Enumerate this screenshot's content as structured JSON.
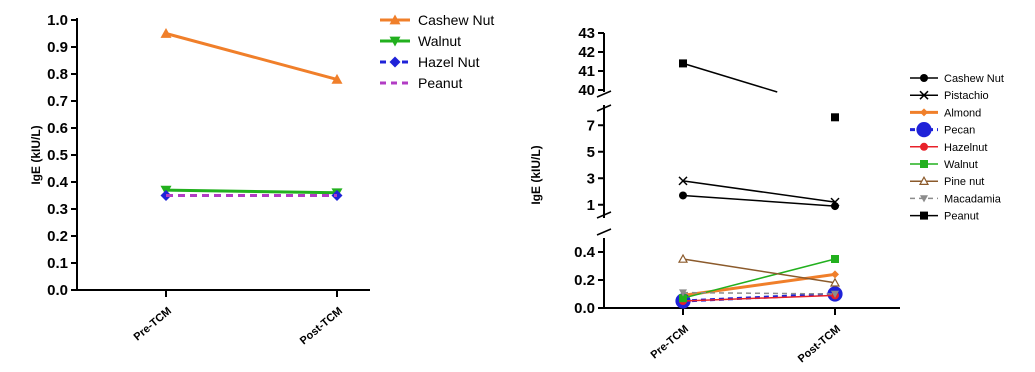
{
  "chart_data": [
    {
      "type": "line",
      "title": "",
      "xlabel": "",
      "ylabel": "IgE (kIU/L)",
      "categories": [
        "Pre-TCM",
        "Post-TCM"
      ],
      "ylim": [
        0,
        1.0
      ],
      "yticks": [
        "0.0",
        "0.1",
        "0.2",
        "0.3",
        "0.4",
        "0.5",
        "0.6",
        "0.7",
        "0.8",
        "0.9",
        "1.0"
      ],
      "legend_position": "top-right",
      "grid": false,
      "series": [
        {
          "name": "Cashew Nut",
          "values": [
            0.95,
            0.78
          ],
          "color": "#f07f2a",
          "marker": "triangle-up",
          "dash": "solid"
        },
        {
          "name": "Walnut",
          "values": [
            0.37,
            0.36
          ],
          "color": "#22b01e",
          "marker": "triangle-down",
          "dash": "solid"
        },
        {
          "name": "Hazel Nut",
          "values": [
            0.35,
            0.35
          ],
          "color": "#1f22d8",
          "marker": "diamond",
          "dash": "dashed"
        },
        {
          "name": "Peanut",
          "values": [
            0.35,
            0.35
          ],
          "color": "#b23cc4",
          "marker": "none",
          "dash": "dashed"
        }
      ]
    },
    {
      "type": "line",
      "title": "",
      "xlabel": "",
      "ylabel": "IgE (kIU/L)",
      "categories": [
        "Pre-TCM",
        "Post-TCM"
      ],
      "axis_breaks": true,
      "ylim_segments": [
        [
          0,
          0.5
        ],
        [
          0,
          8
        ],
        [
          40,
          43
        ]
      ],
      "yticks": {
        "bottom": [
          "0.0",
          "0.2",
          "0.4"
        ],
        "middle": [
          "1",
          "3",
          "5",
          "7"
        ],
        "top": [
          "40",
          "41",
          "42",
          "43"
        ]
      },
      "legend_position": "right",
      "grid": false,
      "series": [
        {
          "name": "Cashew Nut",
          "values": [
            1.7,
            0.9
          ],
          "color": "#000000",
          "marker": "circle",
          "dash": "solid"
        },
        {
          "name": "Pistachio",
          "values": [
            2.8,
            1.2
          ],
          "color": "#000000",
          "marker": "x",
          "dash": "solid"
        },
        {
          "name": "Almond",
          "values": [
            0.09,
            0.24
          ],
          "color": "#f07f2a",
          "marker": "diamond",
          "dash": "solid"
        },
        {
          "name": "Pecan",
          "values": [
            0.05,
            0.1
          ],
          "color": "#1f22d8",
          "marker": "big-circle",
          "dash": "dashed"
        },
        {
          "name": "Hazelnut",
          "values": [
            0.05,
            0.09
          ],
          "color": "#e8212a",
          "marker": "circle",
          "dash": "solid"
        },
        {
          "name": "Walnut",
          "values": [
            0.07,
            0.35
          ],
          "color": "#22b01e",
          "marker": "square",
          "dash": "solid"
        },
        {
          "name": "Pine nut",
          "values": [
            0.35,
            0.18
          ],
          "color": "#8b5a2b",
          "marker": "triangle-open",
          "dash": "solid"
        },
        {
          "name": "Macadamia",
          "values": [
            0.11,
            0.1
          ],
          "color": "#8c8c8c",
          "marker": "triangle-down",
          "dash": "dashed"
        },
        {
          "name": "Peanut",
          "values": [
            41.4,
            7.6
          ],
          "color": "#000000",
          "marker": "square",
          "dash": "solid"
        }
      ]
    }
  ]
}
